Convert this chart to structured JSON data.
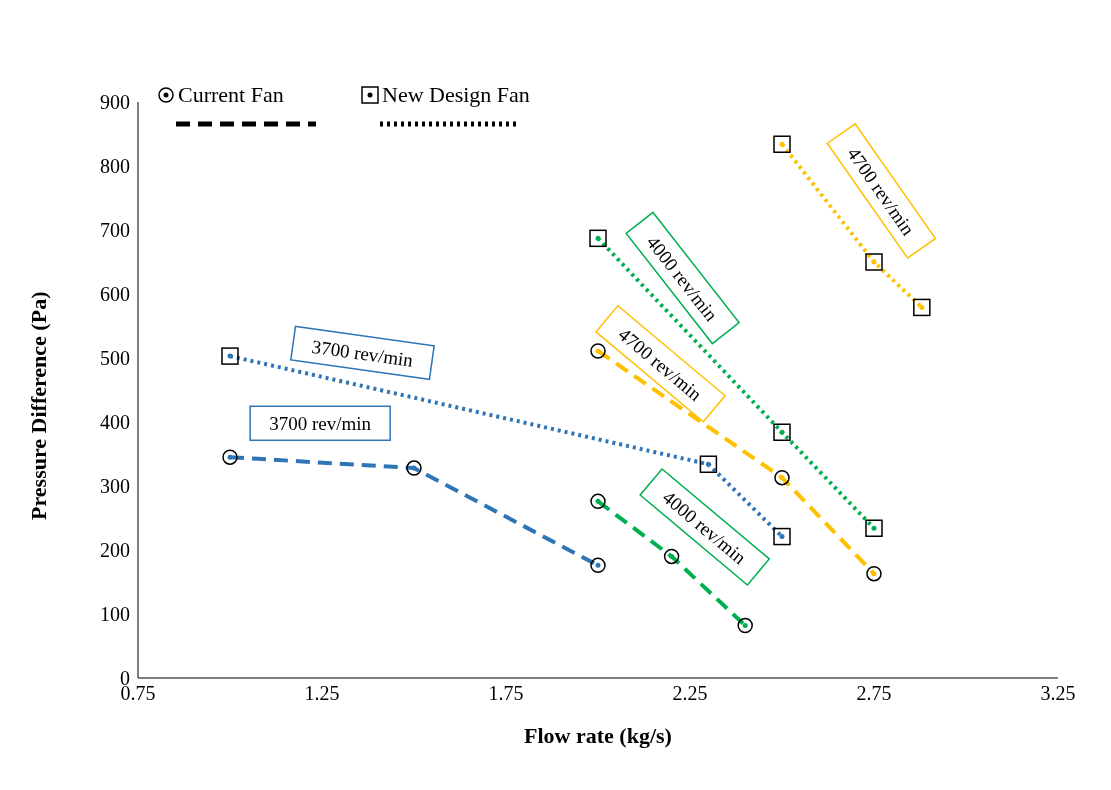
{
  "chart_data": {
    "type": "line",
    "xlabel": "Flow rate (kg/s)",
    "ylabel": "Pressure Difference (Pa)",
    "xlim": [
      0.75,
      3.25
    ],
    "xticks": [
      0.75,
      1.25,
      1.75,
      2.25,
      2.75,
      3.25
    ],
    "ylim": [
      0,
      900
    ],
    "yticks": [
      0,
      100,
      200,
      300,
      400,
      500,
      600,
      700,
      800,
      900
    ],
    "legend": "top left",
    "series": [
      {
        "name": "Current Fan",
        "color": "#2e75b6",
        "marker": "circle",
        "line_style": "dashed",
        "x": [
          1.0,
          1.5,
          2.0
        ],
        "values": [
          345,
          328,
          176
        ]
      },
      {
        "name": "New Design Fan",
        "color": "#2e75b6",
        "marker": "square",
        "line_style": "dotted",
        "x": [
          1.0,
          2.3,
          2.5
        ],
        "values": [
          503,
          334,
          221
        ]
      },
      {
        "color": "#00b050",
        "marker": "square",
        "line_style": "dotted",
        "x": [
          2.0,
          2.5,
          2.75
        ],
        "values": [
          687,
          384,
          234
        ]
      },
      {
        "color": "#ffc000",
        "marker": "circle",
        "line_style": "dashed",
        "x": [
          2.0,
          2.5,
          2.75
        ],
        "values": [
          511,
          313,
          163
        ]
      },
      {
        "color": "#00b050",
        "marker": "circle",
        "line_style": "dashed",
        "x": [
          2.0,
          2.2,
          2.4
        ],
        "values": [
          276,
          190,
          82
        ]
      },
      {
        "color": "#ffc000",
        "marker": "square",
        "line_style": "dotted",
        "x": [
          2.5,
          2.75,
          2.88
        ],
        "values": [
          834,
          650,
          579
        ]
      }
    ],
    "annotations": [
      "3700 rev/min",
      "3700 rev/min",
      "4000 rev/min",
      "4700 rev/min",
      "4000 rev/min",
      "4700 rev/min"
    ]
  }
}
